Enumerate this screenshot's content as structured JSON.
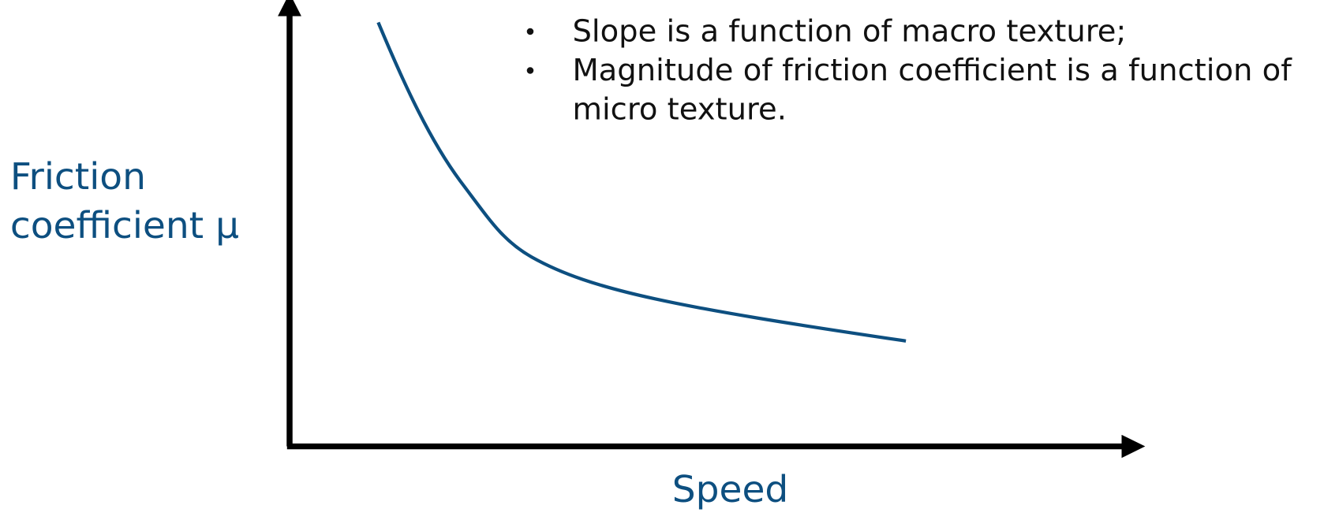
{
  "y_axis_label": [
    "Friction",
    "coefficient μ"
  ],
  "x_axis_label": "Speed",
  "notes": [
    [
      "Slope is a function of macro texture;"
    ],
    [
      "Magnitude of friction coefficient is a function of",
      "micro texture."
    ]
  ]
}
